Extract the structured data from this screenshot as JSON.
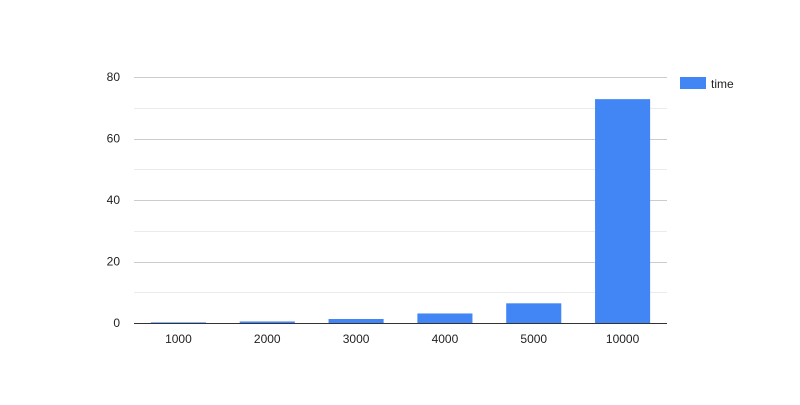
{
  "chart_data": {
    "type": "bar",
    "categories": [
      "1000",
      "2000",
      "3000",
      "4000",
      "5000",
      "10000"
    ],
    "series": [
      {
        "name": "time",
        "color": "#4285f4",
        "values": [
          0.2,
          0.5,
          1.3,
          3.1,
          6.4,
          72.8
        ]
      }
    ],
    "title": "",
    "xlabel": "",
    "ylabel": "",
    "ylim": [
      0,
      80
    ],
    "yticks": [
      0,
      20,
      40,
      60,
      80
    ],
    "grid": true,
    "legend": "right"
  }
}
